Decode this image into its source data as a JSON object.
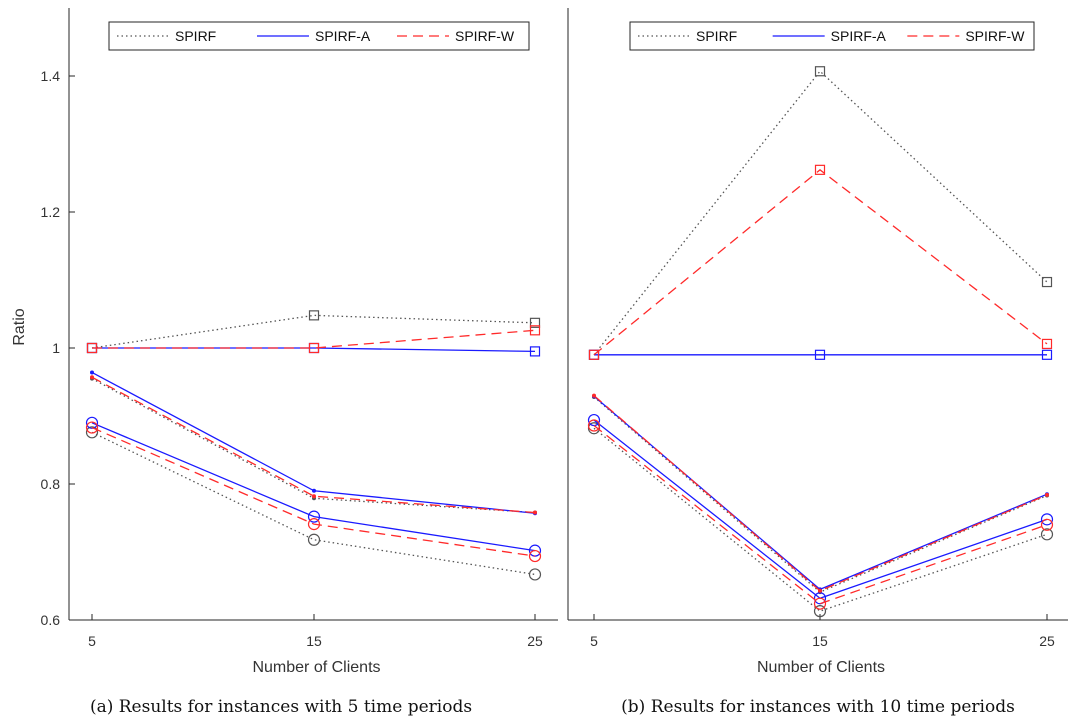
{
  "figure": {
    "ylabel": "Ratio"
  },
  "chart_data": [
    {
      "type": "line",
      "caption": "(a) Results for instances with 5 time periods",
      "xlabel": "Number of Clients",
      "ylabel": "Ratio",
      "x": [
        5,
        15,
        25
      ],
      "xticks": [
        "5",
        "15",
        "25"
      ],
      "ylim": [
        0.6,
        1.5
      ],
      "yticks": [
        "0.6",
        "0.8",
        "1",
        "1.2",
        "1.4"
      ],
      "legend": [
        "SPIRF",
        "SPIRF-A",
        "SPIRF-W"
      ],
      "legend_position": "top-center",
      "grid": false,
      "series": [
        {
          "name": "SPIRF",
          "marker": "square",
          "values": [
            1.0,
            1.048,
            1.037
          ]
        },
        {
          "name": "SPIRF",
          "marker": "dot",
          "values": [
            0.955,
            0.779,
            0.758
          ]
        },
        {
          "name": "SPIRF",
          "marker": "circle",
          "values": [
            0.876,
            0.718,
            0.667
          ]
        },
        {
          "name": "SPIRF-A",
          "marker": "square",
          "values": [
            1.0,
            1.0,
            0.995
          ]
        },
        {
          "name": "SPIRF-A",
          "marker": "dot",
          "values": [
            0.964,
            0.79,
            0.757
          ]
        },
        {
          "name": "SPIRF-A",
          "marker": "circle",
          "values": [
            0.89,
            0.752,
            0.702
          ]
        },
        {
          "name": "SPIRF-W",
          "marker": "square",
          "values": [
            1.0,
            1.0,
            1.026
          ]
        },
        {
          "name": "SPIRF-W",
          "marker": "dot",
          "values": [
            0.957,
            0.782,
            0.758
          ]
        },
        {
          "name": "SPIRF-W",
          "marker": "circle",
          "values": [
            0.883,
            0.741,
            0.694
          ]
        }
      ]
    },
    {
      "type": "line",
      "caption": "(b) Results for instances with 10 time periods",
      "xlabel": "Number of Clients",
      "ylabel": "",
      "x": [
        5,
        15,
        25
      ],
      "xticks": [
        "5",
        "15",
        "25"
      ],
      "ylim": [
        0.6,
        1.5
      ],
      "yticks": [],
      "legend": [
        "SPIRF",
        "SPIRF-A",
        "SPIRF-W"
      ],
      "legend_position": "top-center",
      "grid": false,
      "series": [
        {
          "name": "SPIRF",
          "marker": "square",
          "values": [
            0.99,
            1.407,
            1.097
          ]
        },
        {
          "name": "SPIRF",
          "marker": "dot",
          "values": [
            0.928,
            0.641,
            0.783
          ]
        },
        {
          "name": "SPIRF",
          "marker": "circle",
          "values": [
            0.882,
            0.613,
            0.726
          ]
        },
        {
          "name": "SPIRF-A",
          "marker": "square",
          "values": [
            0.99,
            0.99,
            0.99
          ]
        },
        {
          "name": "SPIRF-A",
          "marker": "dot",
          "values": [
            0.929,
            0.645,
            0.785
          ]
        },
        {
          "name": "SPIRF-A",
          "marker": "circle",
          "values": [
            0.894,
            0.632,
            0.748
          ]
        },
        {
          "name": "SPIRF-W",
          "marker": "square",
          "values": [
            0.99,
            1.262,
            1.006
          ]
        },
        {
          "name": "SPIRF-W",
          "marker": "dot",
          "values": [
            0.93,
            0.643,
            0.784
          ]
        },
        {
          "name": "SPIRF-W",
          "marker": "circle",
          "values": [
            0.886,
            0.624,
            0.74
          ]
        }
      ]
    }
  ],
  "styles": {
    "SPIRF": {
      "color": "#555555",
      "dash": "dotted"
    },
    "SPIRF-A": {
      "color": "#1a1aff",
      "dash": "solid"
    },
    "SPIRF-W": {
      "color": "#ff2a2a",
      "dash": "dashed"
    }
  }
}
